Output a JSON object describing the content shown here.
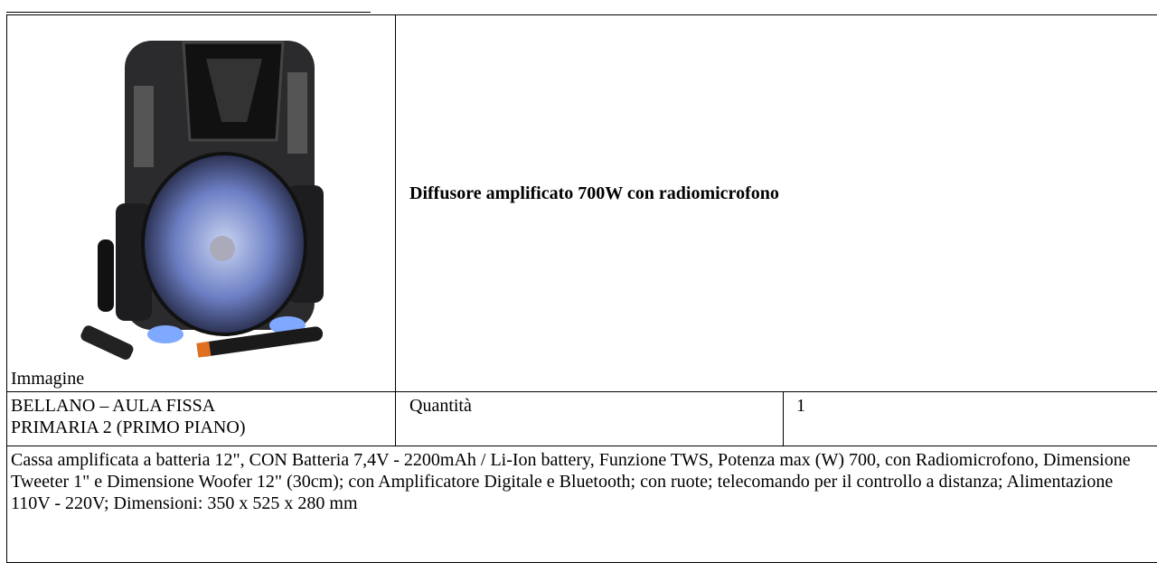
{
  "table": {
    "image_label": "Immagine",
    "product_title": "Diffusore amplificato 700W con radiomicrofono",
    "location": "BELLANO – AULA FISSA PRIMARIA 2 (PRIMO PIANO)",
    "quantity_label": "Quantità",
    "quantity": "1",
    "description": "Cassa amplificata a batteria 12\", CON Batteria 7,4V - 2200mAh / Li-Ion battery, Funzione TWS, Potenza max (W) 700, con Radiomicrofono, Dimensione Tweeter 1\" e Dimensione Woofer 12\" (30cm); con Amplificatore Digitale e Bluetooth; con ruote; telecomando per il controllo a distanza; Alimentazione 110V - 220V; Dimensioni: 350 x 525 x 280 mm"
  }
}
